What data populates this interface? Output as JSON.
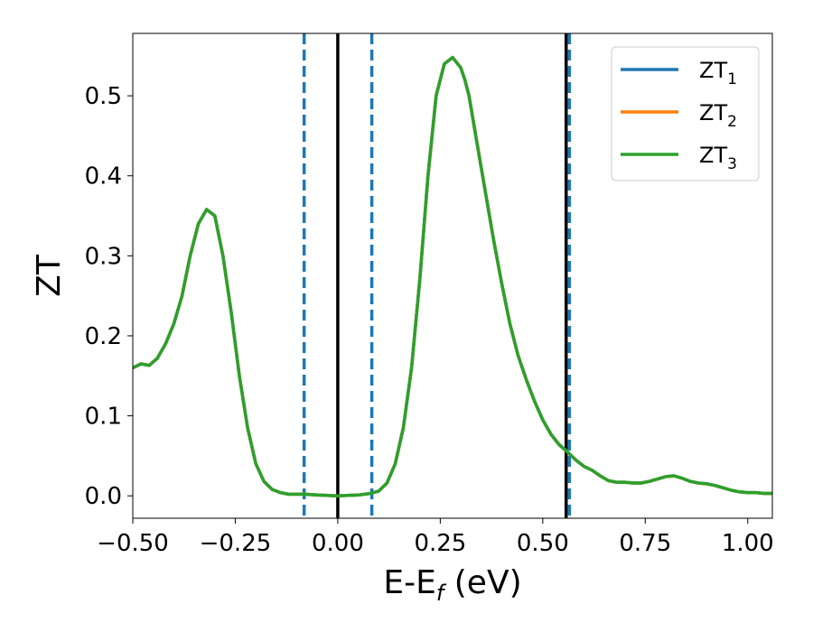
{
  "chart_data": {
    "type": "line",
    "xlabel": "E-E",
    "xlabel_subscript": "f",
    "xlabel_unit": " (eV)",
    "ylabel": "ZT",
    "xlim": [
      -0.5,
      1.06
    ],
    "ylim": [
      -0.028,
      0.578
    ],
    "xticks": [
      -0.5,
      -0.25,
      0.0,
      0.25,
      0.5,
      0.75,
      1.0
    ],
    "xtick_labels": [
      "−0.50",
      "−0.25",
      "0.00",
      "0.25",
      "0.50",
      "0.75",
      "1.00"
    ],
    "yticks": [
      0.0,
      0.1,
      0.2,
      0.3,
      0.4,
      0.5
    ],
    "ytick_labels": [
      "0.0",
      "0.1",
      "0.2",
      "0.3",
      "0.4",
      "0.5"
    ],
    "grid": false,
    "legend_position": "top-right",
    "series": [
      {
        "name": "ZT",
        "subscript": "1",
        "color": "#1f77b4",
        "x": [
          -0.5,
          -0.48,
          -0.46,
          -0.44,
          -0.42,
          -0.4,
          -0.38,
          -0.36,
          -0.34,
          -0.32,
          -0.3,
          -0.28,
          -0.26,
          -0.24,
          -0.22,
          -0.2,
          -0.18,
          -0.16,
          -0.14,
          -0.12,
          -0.1,
          -0.08,
          -0.05,
          0.0,
          0.05,
          0.08,
          0.1,
          0.12,
          0.14,
          0.16,
          0.18,
          0.2,
          0.22,
          0.24,
          0.26,
          0.28,
          0.3,
          0.31,
          0.32,
          0.33,
          0.34,
          0.36,
          0.38,
          0.4,
          0.42,
          0.44,
          0.46,
          0.48,
          0.5,
          0.52,
          0.54,
          0.56,
          0.58,
          0.6,
          0.62,
          0.64,
          0.66,
          0.68,
          0.7,
          0.72,
          0.74,
          0.76,
          0.78,
          0.8,
          0.82,
          0.84,
          0.86,
          0.88,
          0.9,
          0.92,
          0.94,
          0.96,
          0.98,
          1.0,
          1.02,
          1.04,
          1.06
        ],
        "y": [
          0.16,
          0.165,
          0.163,
          0.172,
          0.19,
          0.215,
          0.25,
          0.3,
          0.34,
          0.358,
          0.35,
          0.3,
          0.23,
          0.15,
          0.085,
          0.04,
          0.018,
          0.008,
          0.004,
          0.002,
          0.002,
          0.002,
          0.001,
          0.0,
          0.001,
          0.003,
          0.006,
          0.016,
          0.04,
          0.085,
          0.16,
          0.27,
          0.4,
          0.5,
          0.54,
          0.548,
          0.535,
          0.52,
          0.5,
          0.47,
          0.44,
          0.38,
          0.32,
          0.265,
          0.215,
          0.175,
          0.145,
          0.118,
          0.095,
          0.077,
          0.064,
          0.055,
          0.045,
          0.037,
          0.032,
          0.025,
          0.019,
          0.017,
          0.017,
          0.016,
          0.016,
          0.018,
          0.021,
          0.024,
          0.025,
          0.022,
          0.018,
          0.016,
          0.015,
          0.013,
          0.01,
          0.007,
          0.005,
          0.004,
          0.004,
          0.003,
          0.003
        ]
      },
      {
        "name": "ZT",
        "subscript": "2",
        "color": "#ff7f0e",
        "x": [
          -0.5,
          -0.48,
          -0.46,
          -0.44,
          -0.42,
          -0.4,
          -0.38,
          -0.36,
          -0.34,
          -0.32,
          -0.3,
          -0.28,
          -0.26,
          -0.24,
          -0.22,
          -0.2,
          -0.18,
          -0.16,
          -0.14,
          -0.12,
          -0.1,
          -0.08,
          -0.05,
          0.0,
          0.05,
          0.08,
          0.1,
          0.12,
          0.14,
          0.16,
          0.18,
          0.2,
          0.22,
          0.24,
          0.26,
          0.28,
          0.3,
          0.31,
          0.32,
          0.33,
          0.34,
          0.36,
          0.38,
          0.4,
          0.42,
          0.44,
          0.46,
          0.48,
          0.5,
          0.52,
          0.54,
          0.56,
          0.58,
          0.6,
          0.62,
          0.64,
          0.66,
          0.68,
          0.7,
          0.72,
          0.74,
          0.76,
          0.78,
          0.8,
          0.82,
          0.84,
          0.86,
          0.88,
          0.9,
          0.92,
          0.94,
          0.96,
          0.98,
          1.0,
          1.02,
          1.04,
          1.06
        ],
        "y": [
          0.16,
          0.165,
          0.163,
          0.172,
          0.19,
          0.215,
          0.25,
          0.3,
          0.34,
          0.358,
          0.35,
          0.3,
          0.23,
          0.15,
          0.085,
          0.04,
          0.018,
          0.008,
          0.004,
          0.002,
          0.002,
          0.002,
          0.001,
          0.0,
          0.001,
          0.003,
          0.006,
          0.016,
          0.04,
          0.085,
          0.16,
          0.27,
          0.4,
          0.5,
          0.54,
          0.548,
          0.535,
          0.52,
          0.5,
          0.47,
          0.44,
          0.38,
          0.32,
          0.265,
          0.215,
          0.175,
          0.145,
          0.118,
          0.095,
          0.077,
          0.064,
          0.055,
          0.045,
          0.037,
          0.032,
          0.025,
          0.019,
          0.017,
          0.017,
          0.016,
          0.016,
          0.018,
          0.021,
          0.024,
          0.025,
          0.022,
          0.018,
          0.016,
          0.015,
          0.013,
          0.01,
          0.007,
          0.005,
          0.004,
          0.004,
          0.003,
          0.003
        ]
      },
      {
        "name": "ZT",
        "subscript": "3",
        "color": "#2ca02c",
        "x": [
          -0.5,
          -0.48,
          -0.46,
          -0.44,
          -0.42,
          -0.4,
          -0.38,
          -0.36,
          -0.34,
          -0.32,
          -0.3,
          -0.28,
          -0.26,
          -0.24,
          -0.22,
          -0.2,
          -0.18,
          -0.16,
          -0.14,
          -0.12,
          -0.1,
          -0.08,
          -0.05,
          0.0,
          0.05,
          0.08,
          0.1,
          0.12,
          0.14,
          0.16,
          0.18,
          0.2,
          0.22,
          0.24,
          0.26,
          0.28,
          0.3,
          0.31,
          0.32,
          0.33,
          0.34,
          0.36,
          0.38,
          0.4,
          0.42,
          0.44,
          0.46,
          0.48,
          0.5,
          0.52,
          0.54,
          0.56,
          0.58,
          0.6,
          0.62,
          0.64,
          0.66,
          0.68,
          0.7,
          0.72,
          0.74,
          0.76,
          0.78,
          0.8,
          0.82,
          0.84,
          0.86,
          0.88,
          0.9,
          0.92,
          0.94,
          0.96,
          0.98,
          1.0,
          1.02,
          1.04,
          1.06
        ],
        "y": [
          0.16,
          0.165,
          0.163,
          0.172,
          0.19,
          0.215,
          0.25,
          0.3,
          0.34,
          0.358,
          0.35,
          0.3,
          0.23,
          0.15,
          0.085,
          0.04,
          0.018,
          0.008,
          0.004,
          0.002,
          0.002,
          0.002,
          0.001,
          0.0,
          0.001,
          0.003,
          0.006,
          0.016,
          0.04,
          0.085,
          0.16,
          0.27,
          0.4,
          0.5,
          0.54,
          0.548,
          0.535,
          0.52,
          0.5,
          0.47,
          0.44,
          0.38,
          0.32,
          0.265,
          0.215,
          0.175,
          0.145,
          0.118,
          0.095,
          0.077,
          0.064,
          0.055,
          0.045,
          0.037,
          0.032,
          0.025,
          0.019,
          0.017,
          0.017,
          0.016,
          0.016,
          0.018,
          0.021,
          0.024,
          0.025,
          0.022,
          0.018,
          0.016,
          0.015,
          0.013,
          0.01,
          0.007,
          0.005,
          0.004,
          0.004,
          0.003,
          0.003
        ]
      }
    ],
    "vlines": [
      {
        "x": 0.0,
        "color": "#000000",
        "style": "solid"
      },
      {
        "x": 0.557,
        "color": "#000000",
        "style": "solid"
      },
      {
        "x": -0.082,
        "color": "#1f77b4",
        "style": "dashed"
      },
      {
        "x": 0.083,
        "color": "#1f77b4",
        "style": "dashed"
      },
      {
        "x": 0.565,
        "color": "#1f77b4",
        "style": "dashed"
      }
    ]
  }
}
